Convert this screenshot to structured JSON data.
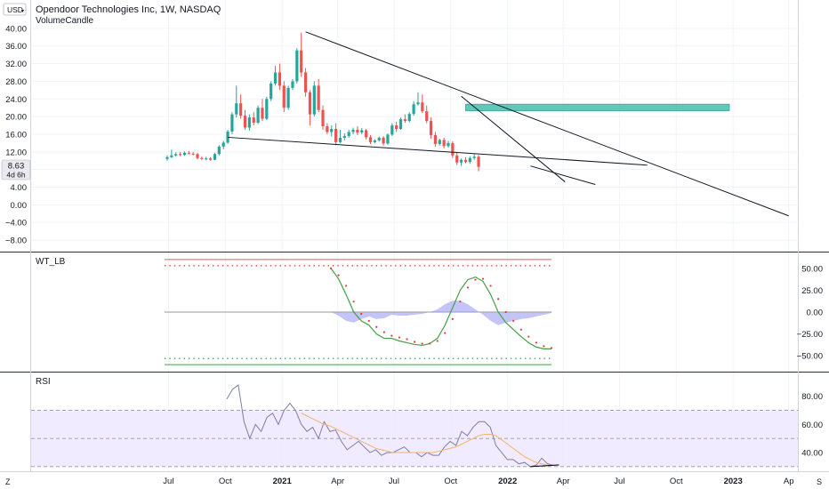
{
  "header": {
    "currency": "USD",
    "title": "Opendoor Technologies Inc, 1W, NASDAQ",
    "indicator": "VolumeCandle"
  },
  "price_tag": {
    "value": "8.63",
    "countdown": "4d 6h"
  },
  "x_ticks": [
    "Jul",
    "Oct",
    "2021",
    "Apr",
    "Jul",
    "Oct",
    "2022",
    "Apr",
    "Jul",
    "Oct",
    "2023",
    "Ap"
  ],
  "footer": {
    "left": "Z",
    "right": "S"
  },
  "colors": {
    "up": "#26a69a",
    "down": "#ef5350",
    "zone": "#4fc3b1",
    "wt_green": "#43a047",
    "wt_red": "#e53935",
    "wt_fill": "#9c9cf0",
    "rsi_line": "#7e7ea6",
    "rsi_ma": "#f5b26b",
    "rsi_band": "#ede7ff"
  },
  "chart_data": [
    {
      "type": "candlestick",
      "name": "price",
      "ylim": [
        -10,
        44
      ],
      "y_ticks": [
        40,
        36,
        32,
        28,
        24,
        20,
        16,
        12,
        8,
        4,
        0,
        -4,
        -8
      ],
      "y_tick_labels": [
        "40.00",
        "36.00",
        "32.00",
        "28.00",
        "24.00",
        "20.00",
        "16.00",
        "12.00",
        "8.00",
        "4.00",
        "0.00",
        "−4.00",
        "−8.00"
      ],
      "candles": [
        {
          "o": 10.4,
          "h": 11.2,
          "l": 10.0,
          "c": 10.8
        },
        {
          "o": 10.8,
          "h": 12.5,
          "l": 10.6,
          "c": 11.2
        },
        {
          "o": 11.2,
          "h": 11.9,
          "l": 10.9,
          "c": 11.5
        },
        {
          "o": 11.5,
          "h": 12.0,
          "l": 11.0,
          "c": 11.3
        },
        {
          "o": 11.3,
          "h": 12.1,
          "l": 11.1,
          "c": 11.8
        },
        {
          "o": 11.8,
          "h": 12.2,
          "l": 11.4,
          "c": 11.6
        },
        {
          "o": 11.6,
          "h": 12.0,
          "l": 11.2,
          "c": 11.5
        },
        {
          "o": 11.5,
          "h": 11.8,
          "l": 10.3,
          "c": 10.6
        },
        {
          "o": 10.6,
          "h": 11.0,
          "l": 10.2,
          "c": 10.4
        },
        {
          "o": 10.4,
          "h": 10.9,
          "l": 10.1,
          "c": 10.5
        },
        {
          "o": 10.5,
          "h": 10.8,
          "l": 10.0,
          "c": 10.2
        },
        {
          "o": 10.2,
          "h": 11.8,
          "l": 10.1,
          "c": 11.5
        },
        {
          "o": 11.5,
          "h": 13.5,
          "l": 11.2,
          "c": 13.2
        },
        {
          "o": 13.2,
          "h": 14.5,
          "l": 12.6,
          "c": 14.1
        },
        {
          "o": 14.1,
          "h": 17.0,
          "l": 13.8,
          "c": 16.6
        },
        {
          "o": 16.6,
          "h": 21.0,
          "l": 16.0,
          "c": 20.5
        },
        {
          "o": 20.5,
          "h": 27.0,
          "l": 19.8,
          "c": 23.0
        },
        {
          "o": 23.0,
          "h": 25.0,
          "l": 19.5,
          "c": 20.2
        },
        {
          "o": 20.2,
          "h": 21.5,
          "l": 17.0,
          "c": 17.5
        },
        {
          "o": 17.5,
          "h": 20.5,
          "l": 16.8,
          "c": 19.8
        },
        {
          "o": 19.8,
          "h": 21.0,
          "l": 18.0,
          "c": 18.6
        },
        {
          "o": 18.6,
          "h": 22.5,
          "l": 18.3,
          "c": 22.0
        },
        {
          "o": 22.0,
          "h": 24.0,
          "l": 19.0,
          "c": 19.5
        },
        {
          "o": 19.5,
          "h": 24.5,
          "l": 19.2,
          "c": 24.0
        },
        {
          "o": 24.0,
          "h": 28.0,
          "l": 23.5,
          "c": 27.5
        },
        {
          "o": 27.5,
          "h": 31.5,
          "l": 27.0,
          "c": 30.0
        },
        {
          "o": 30.0,
          "h": 32.0,
          "l": 26.0,
          "c": 27.0
        },
        {
          "o": 27.0,
          "h": 28.0,
          "l": 21.0,
          "c": 22.0
        },
        {
          "o": 22.0,
          "h": 27.0,
          "l": 21.5,
          "c": 26.5
        },
        {
          "o": 26.5,
          "h": 28.5,
          "l": 26.0,
          "c": 28.0
        },
        {
          "o": 28.0,
          "h": 35.5,
          "l": 27.5,
          "c": 35.0
        },
        {
          "o": 35.0,
          "h": 39.0,
          "l": 29.0,
          "c": 30.0
        },
        {
          "o": 30.0,
          "h": 31.0,
          "l": 24.5,
          "c": 25.5
        },
        {
          "o": 25.5,
          "h": 26.0,
          "l": 18.0,
          "c": 20.5
        },
        {
          "o": 20.5,
          "h": 28.0,
          "l": 20.0,
          "c": 27.0
        },
        {
          "o": 27.0,
          "h": 28.5,
          "l": 21.0,
          "c": 21.5
        },
        {
          "o": 21.5,
          "h": 22.5,
          "l": 17.0,
          "c": 17.8
        },
        {
          "o": 17.8,
          "h": 18.5,
          "l": 16.0,
          "c": 16.5
        },
        {
          "o": 16.5,
          "h": 18.0,
          "l": 15.5,
          "c": 17.2
        },
        {
          "o": 17.2,
          "h": 18.5,
          "l": 13.5,
          "c": 14.2
        },
        {
          "o": 14.2,
          "h": 17.0,
          "l": 13.9,
          "c": 15.2
        },
        {
          "o": 15.2,
          "h": 16.2,
          "l": 14.6,
          "c": 15.6
        },
        {
          "o": 15.6,
          "h": 17.0,
          "l": 15.2,
          "c": 16.5
        },
        {
          "o": 16.5,
          "h": 17.5,
          "l": 16.0,
          "c": 17.0
        },
        {
          "o": 17.0,
          "h": 17.8,
          "l": 15.8,
          "c": 16.4
        },
        {
          "o": 16.4,
          "h": 17.4,
          "l": 16.0,
          "c": 16.9
        },
        {
          "o": 16.9,
          "h": 17.2,
          "l": 14.8,
          "c": 15.3
        },
        {
          "o": 15.3,
          "h": 15.8,
          "l": 13.8,
          "c": 14.2
        },
        {
          "o": 14.2,
          "h": 14.9,
          "l": 13.9,
          "c": 14.6
        },
        {
          "o": 14.6,
          "h": 15.5,
          "l": 14.3,
          "c": 15.2
        },
        {
          "o": 15.2,
          "h": 15.6,
          "l": 13.4,
          "c": 13.9
        },
        {
          "o": 13.9,
          "h": 16.2,
          "l": 13.6,
          "c": 15.9
        },
        {
          "o": 15.9,
          "h": 18.5,
          "l": 15.6,
          "c": 18.0
        },
        {
          "o": 18.0,
          "h": 18.8,
          "l": 16.5,
          "c": 17.2
        },
        {
          "o": 17.2,
          "h": 19.8,
          "l": 17.0,
          "c": 19.4
        },
        {
          "o": 19.4,
          "h": 20.5,
          "l": 18.6,
          "c": 19.0
        },
        {
          "o": 19.0,
          "h": 21.0,
          "l": 18.7,
          "c": 20.6
        },
        {
          "o": 20.6,
          "h": 23.5,
          "l": 20.2,
          "c": 22.8
        },
        {
          "o": 22.8,
          "h": 25.5,
          "l": 22.5,
          "c": 23.2
        },
        {
          "o": 23.2,
          "h": 25.0,
          "l": 20.8,
          "c": 21.2
        },
        {
          "o": 21.2,
          "h": 22.5,
          "l": 18.5,
          "c": 19.0
        },
        {
          "o": 19.0,
          "h": 19.8,
          "l": 15.0,
          "c": 15.8
        },
        {
          "o": 15.8,
          "h": 16.5,
          "l": 13.2,
          "c": 13.8
        },
        {
          "o": 13.8,
          "h": 15.0,
          "l": 13.4,
          "c": 14.7
        },
        {
          "o": 14.7,
          "h": 15.2,
          "l": 12.8,
          "c": 13.3
        },
        {
          "o": 13.3,
          "h": 14.5,
          "l": 13.0,
          "c": 14.0
        },
        {
          "o": 14.0,
          "h": 14.4,
          "l": 10.6,
          "c": 11.2
        },
        {
          "o": 11.2,
          "h": 11.8,
          "l": 9.0,
          "c": 9.6
        },
        {
          "o": 9.6,
          "h": 10.5,
          "l": 8.8,
          "c": 10.2
        },
        {
          "o": 10.2,
          "h": 10.8,
          "l": 9.4,
          "c": 9.7
        },
        {
          "o": 9.7,
          "h": 11.0,
          "l": 9.3,
          "c": 10.6
        },
        {
          "o": 10.6,
          "h": 11.6,
          "l": 10.2,
          "c": 10.9
        },
        {
          "o": 10.9,
          "h": 11.3,
          "l": 7.6,
          "c": 8.63
        }
      ],
      "trendlines": [
        {
          "from": [
            "2021-02-08",
            39.2
          ],
          "to": [
            "2023-04-01",
            -2.5
          ]
        },
        {
          "from": [
            "2021-10-18",
            24.6
          ],
          "to": [
            "2022-04-04",
            5.2
          ]
        },
        {
          "from": [
            "2020-10-05",
            15.3
          ],
          "to": [
            "2022-08-15",
            9.0
          ]
        },
        {
          "from": [
            "2022-02-07",
            8.8
          ],
          "to": [
            "2022-05-23",
            4.6
          ]
        }
      ],
      "zone": {
        "from": "2021-10-25",
        "to": "2022-12-26",
        "low": 21.3,
        "high": 22.8
      }
    },
    {
      "type": "line",
      "name": "WT_LB",
      "title": "WT_LB",
      "ylim": [
        -65,
        65
      ],
      "y_ticks": [
        50,
        25,
        0,
        -25,
        -50
      ],
      "y_tick_labels": [
        "50.00",
        "25.00",
        "0.00",
        "−25.00",
        "−50.00"
      ],
      "levels": [
        60,
        53,
        -53,
        -60
      ],
      "wt1": [
        50,
        38,
        20,
        0,
        -10,
        -15,
        -25,
        -30,
        -30,
        -33,
        -35,
        -37,
        -38,
        -36,
        -30,
        -15,
        5,
        25,
        37,
        40,
        35,
        20,
        0,
        -12,
        -20,
        -28,
        -35,
        -40,
        -42,
        -42
      ],
      "wt2": [
        50,
        42,
        30,
        12,
        -2,
        -10,
        -17,
        -23,
        -27,
        -29,
        -31,
        -34,
        -36,
        -36,
        -33,
        -24,
        -8,
        12,
        28,
        37,
        38,
        30,
        15,
        0,
        -10,
        -20,
        -28,
        -35,
        -39,
        -41
      ],
      "histogram": [
        0,
        -4,
        -10,
        -12,
        -8,
        -5,
        -8,
        -7,
        -3,
        -4,
        -4,
        -3,
        -2,
        0,
        3,
        9,
        13,
        13,
        9,
        3,
        -3,
        -10,
        -15,
        -12,
        -10,
        -8,
        -7,
        -5,
        -3,
        -1
      ]
    },
    {
      "type": "line",
      "name": "RSI",
      "title": "RSI",
      "ylim": [
        28,
        95
      ],
      "y_ticks": [
        80,
        60,
        40
      ],
      "y_tick_labels": [
        "80.00",
        "60.00",
        "40.00"
      ],
      "levels": [
        70,
        50,
        30
      ],
      "rsi": [
        78,
        85,
        88,
        62,
        50,
        60,
        55,
        65,
        68,
        60,
        70,
        75,
        70,
        60,
        55,
        58,
        50,
        62,
        55,
        56,
        48,
        42,
        45,
        48,
        44,
        40,
        42,
        38,
        40,
        40,
        42,
        44,
        40,
        40,
        37,
        40,
        38,
        38,
        44,
        48,
        45,
        55,
        52,
        58,
        62,
        62,
        58,
        45,
        40,
        35,
        35,
        32,
        33,
        30,
        31,
        36,
        32,
        31
      ],
      "rsi_ma": [
        null,
        null,
        null,
        null,
        null,
        null,
        null,
        null,
        null,
        null,
        null,
        null,
        null,
        68,
        66,
        64,
        62,
        60,
        59,
        57,
        55,
        53,
        51,
        49,
        47,
        45,
        43,
        42,
        41,
        40,
        40,
        40,
        40,
        40,
        40,
        40,
        40,
        41,
        42,
        43,
        44,
        46,
        48,
        50,
        52,
        53,
        53,
        52,
        49,
        46,
        43,
        40,
        37,
        35,
        33,
        32,
        31,
        31
      ],
      "divergence": {
        "from": [
          53,
          30
        ],
        "to": [
          58,
          31.2
        ]
      }
    }
  ]
}
